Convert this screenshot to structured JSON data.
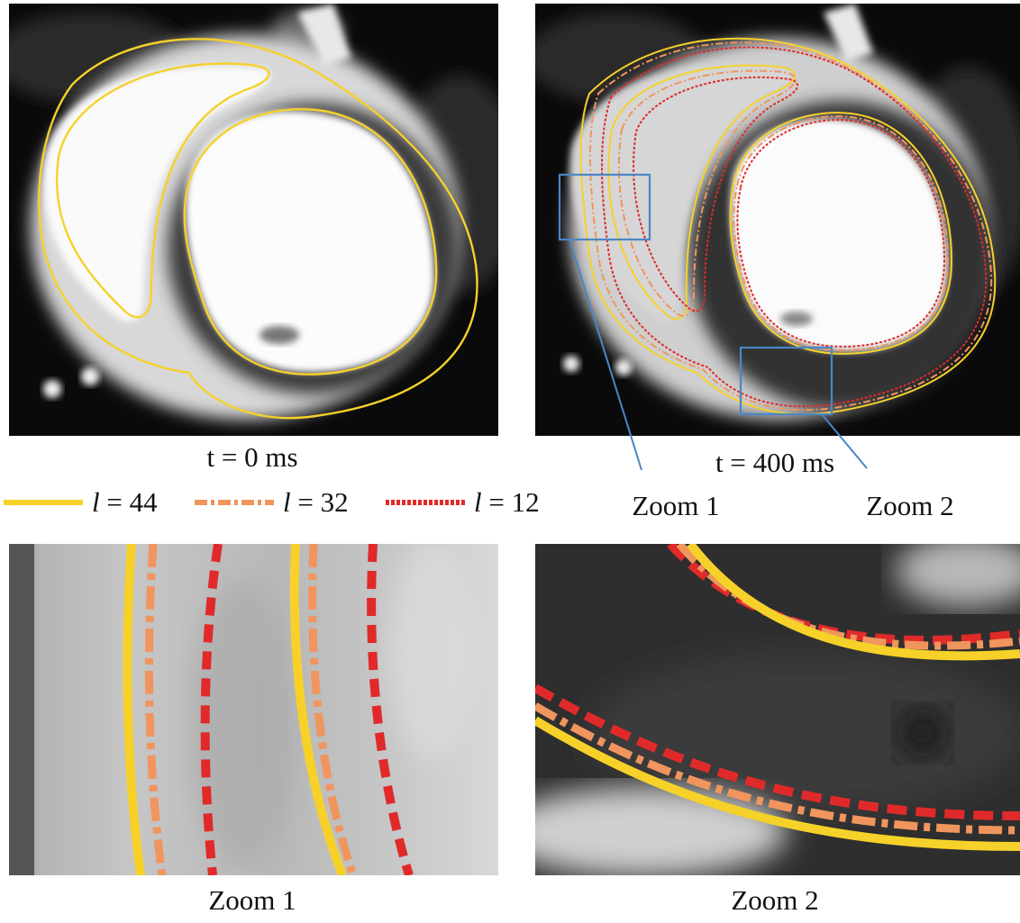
{
  "captions": {
    "t0": "t = 0 ms",
    "t400": "t = 400 ms",
    "zoom1_top": "Zoom 1",
    "zoom2_top": "Zoom 2",
    "zoom1_bottom": "Zoom 1",
    "zoom2_bottom": "Zoom 2"
  },
  "legend": [
    {
      "symbol": "l",
      "value": "= 44",
      "style": "solid",
      "color": "#f6d12a"
    },
    {
      "symbol": "l",
      "value": "= 32",
      "style": "dash-dot",
      "color": "#f0955e"
    },
    {
      "symbol": "l",
      "value": "= 12",
      "style": "dotted",
      "color": "#e02a2a"
    }
  ],
  "colors": {
    "contour_44": "#f6d12a",
    "contour_32": "#f0955e",
    "contour_12": "#e02a2a",
    "zoom_box": "#4a86c5"
  }
}
